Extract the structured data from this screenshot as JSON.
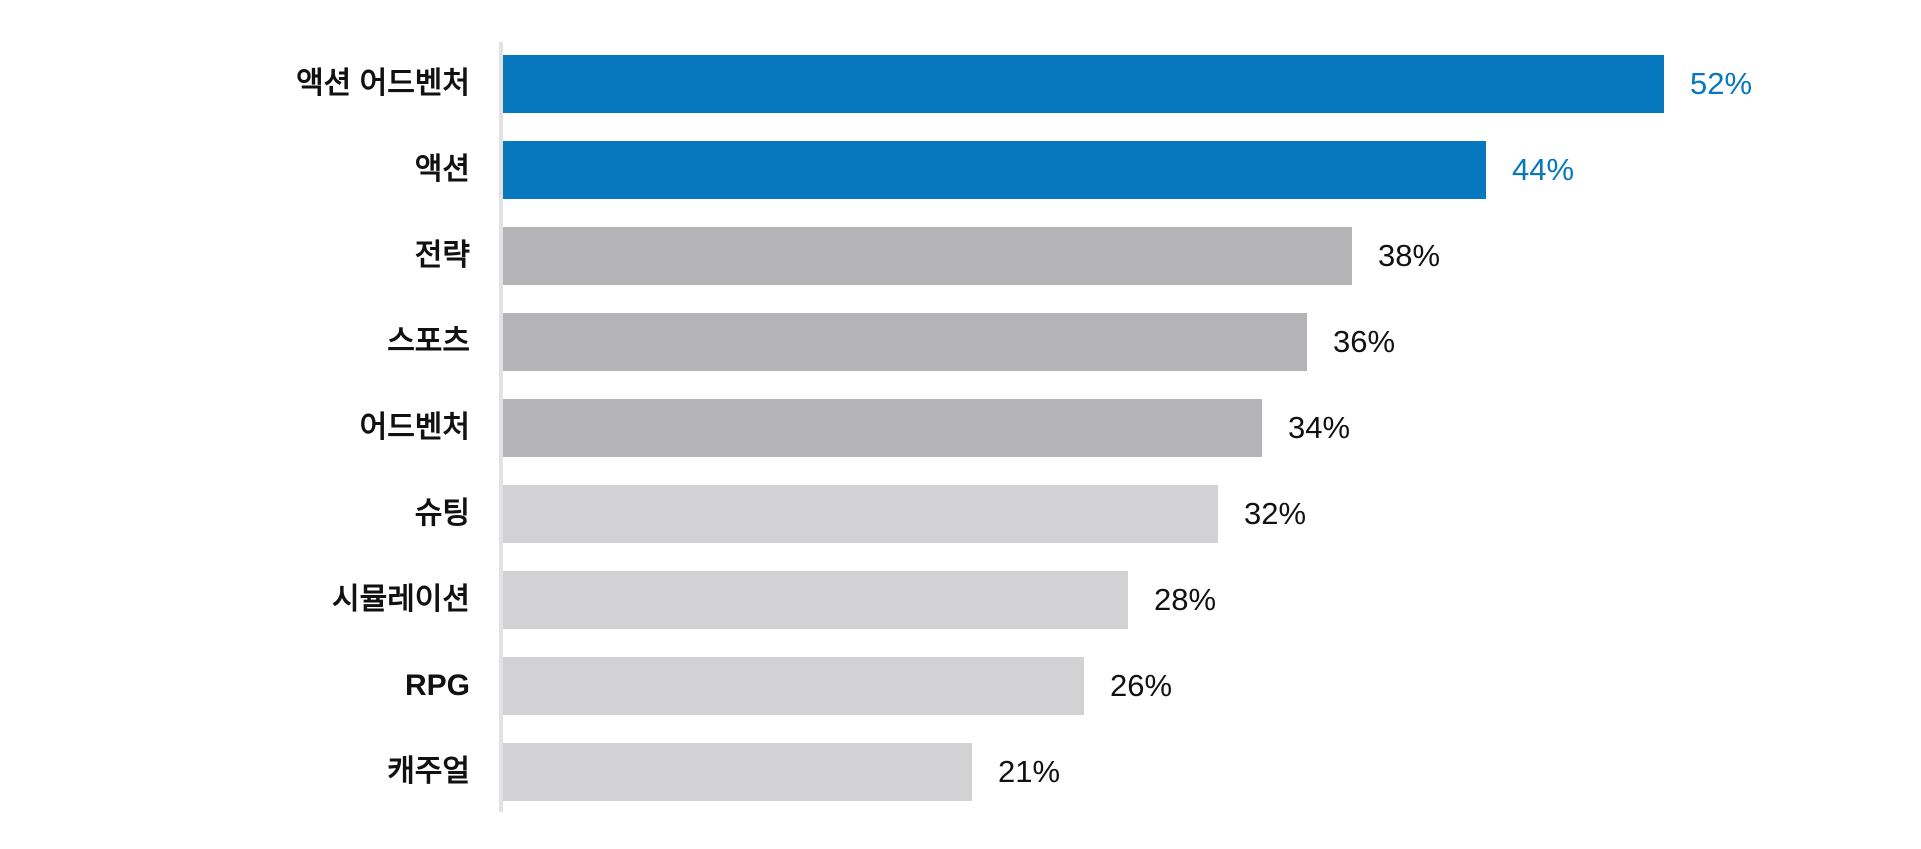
{
  "chart_data": {
    "type": "bar",
    "orientation": "horizontal",
    "title": "",
    "xlabel": "",
    "ylabel": "",
    "grid": false,
    "legend": false,
    "xlim": [
      0,
      63
    ],
    "categories": [
      "액션 어드벤처",
      "액션",
      "전략",
      "스포츠",
      "어드벤처",
      "슈팅",
      "시뮬레이션",
      "RPG",
      "캐주얼"
    ],
    "values": [
      52,
      44,
      38,
      36,
      34,
      32,
      28,
      26,
      21
    ],
    "value_labels": [
      "52%",
      "44%",
      "38%",
      "36%",
      "34%",
      "32%",
      "28%",
      "26%",
      "21%"
    ],
    "bar_colors": [
      "#0778be",
      "#0778be",
      "#b4b4b6",
      "#b4b4b6",
      "#b4b4b6",
      "#d2d2d4",
      "#d2d2d4",
      "#d2d2d4",
      "#d2d2d4"
    ],
    "value_label_colors": [
      "#0778be",
      "#0778be",
      "#111111",
      "#111111",
      "#111111",
      "#111111",
      "#111111",
      "#111111",
      "#111111"
    ],
    "colors": {
      "highlight_blue": "#0778be",
      "medium_gray": "#b4b4b6",
      "light_gray": "#d2d2d4",
      "axis_line": "#e2e2e4",
      "text_black": "#111111",
      "background": "#ffffff"
    }
  }
}
